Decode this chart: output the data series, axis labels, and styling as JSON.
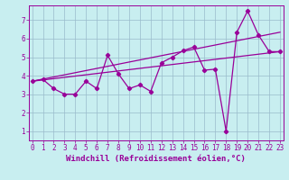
{
  "xlabel": "Windchill (Refroidissement éolien,°C)",
  "bg_color": "#c8eef0",
  "line_color": "#990099",
  "grid_color": "#99bbcc",
  "series1_x": [
    0,
    1,
    2,
    3,
    4,
    5,
    6,
    7,
    8,
    9,
    10,
    11,
    12,
    13,
    14,
    15,
    16,
    17,
    18,
    19,
    20,
    21,
    22,
    23
  ],
  "series1_y": [
    3.7,
    3.8,
    3.3,
    3.0,
    3.0,
    3.7,
    3.3,
    5.1,
    4.1,
    3.3,
    3.5,
    3.15,
    4.7,
    5.0,
    5.35,
    5.55,
    4.3,
    4.35,
    1.0,
    6.35,
    7.5,
    6.2,
    5.3,
    5.3
  ],
  "trend1_x": [
    0,
    23
  ],
  "trend1_y": [
    3.7,
    6.35
  ],
  "trend2_x": [
    0,
    23
  ],
  "trend2_y": [
    3.7,
    5.3
  ],
  "xlim": [
    -0.3,
    23.3
  ],
  "ylim": [
    0.5,
    7.8
  ],
  "yticks": [
    1,
    2,
    3,
    4,
    5,
    6,
    7
  ],
  "xticks": [
    0,
    1,
    2,
    3,
    4,
    5,
    6,
    7,
    8,
    9,
    10,
    11,
    12,
    13,
    14,
    15,
    16,
    17,
    18,
    19,
    20,
    21,
    22,
    23
  ],
  "tick_fontsize": 5.5,
  "xlabel_fontsize": 6.5,
  "line_width": 0.9,
  "marker": "D",
  "marker_size": 2.2
}
